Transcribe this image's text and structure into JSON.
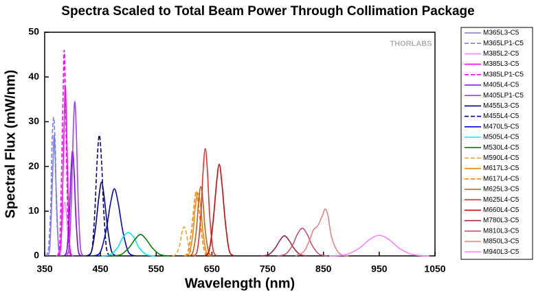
{
  "chart_data": {
    "type": "line",
    "title": "Spectra Scaled to Total Beam Power Through Collimation Package",
    "x_label": "Wavelength (nm)",
    "y_label": "Spectral Flux (mW/nm)",
    "watermark": "THORLABS",
    "xlim": [
      350,
      1050
    ],
    "xticks": [
      350,
      450,
      550,
      650,
      750,
      850,
      950,
      1050
    ],
    "ylim": [
      0,
      50
    ],
    "yticks": [
      0,
      10,
      20,
      30,
      40,
      50
    ],
    "series": [
      {
        "name": "M365L3-C5",
        "color": "#7878f0",
        "dash": false,
        "x": [
          355,
          359,
          362,
          365,
          367,
          369,
          372,
          375,
          379
        ],
        "values": [
          0,
          1.6,
          10,
          21,
          27,
          21,
          10,
          1.6,
          0
        ]
      },
      {
        "name": "M365LP1-C5",
        "color": "#7878f0",
        "dash": true,
        "x": [
          352,
          357,
          361,
          363,
          366,
          369,
          371,
          375,
          380
        ],
        "values": [
          0,
          1.9,
          11.5,
          24.2,
          31,
          24.2,
          11.5,
          1.9,
          0
        ]
      },
      {
        "name": "M385L2-C5",
        "color": "#ff88ff",
        "dash": false,
        "x": [
          371,
          376,
          380,
          383,
          386,
          389,
          392,
          396,
          401
        ],
        "values": [
          0,
          0.7,
          4.4,
          9.4,
          12,
          9.4,
          4.4,
          0.7,
          0
        ]
      },
      {
        "name": "M385L3-C5",
        "color": "#ff00ff",
        "dash": false,
        "x": [
          375,
          379,
          382,
          385,
          387,
          389,
          392,
          395,
          399
        ],
        "values": [
          0,
          2.3,
          14,
          29.6,
          38,
          29.6,
          14,
          2.3,
          0
        ]
      },
      {
        "name": "M385LP1-C5",
        "color": "#ff00ff",
        "dash": true,
        "x": [
          373,
          377,
          380,
          383,
          385,
          387,
          390,
          393,
          397
        ],
        "values": [
          0,
          2.8,
          17,
          35.9,
          46,
          35.9,
          17,
          2.8,
          0
        ]
      },
      {
        "name": "M405L4-C5",
        "color": "#8000ff",
        "dash": false,
        "x": [
          385,
          390,
          394,
          397,
          400,
          403,
          406,
          410,
          415
        ],
        "values": [
          0,
          1.4,
          8.7,
          18.3,
          23.5,
          18.3,
          8.7,
          1.4,
          0
        ]
      },
      {
        "name": "M405LP1-C5",
        "color": "#a040ff",
        "dash": false,
        "x": [
          389,
          394,
          398,
          401,
          404,
          407,
          410,
          414,
          419
        ],
        "values": [
          0,
          2.1,
          12.8,
          26.9,
          34.5,
          26.9,
          12.8,
          2.1,
          0
        ]
      },
      {
        "name": "M455L3-C5",
        "color": "#000080",
        "dash": false,
        "x": [
          425,
          434,
          441,
          447,
          452,
          457,
          463,
          470,
          479
        ],
        "values": [
          0,
          1,
          6.1,
          12.9,
          16.5,
          12.9,
          6.1,
          1,
          0
        ]
      },
      {
        "name": "M455L4-C5",
        "color": "#000080",
        "dash": true,
        "x": [
          428,
          435,
          440,
          444,
          448,
          452,
          456,
          461,
          468
        ],
        "values": [
          0,
          1.6,
          10,
          21.1,
          27,
          21.1,
          10,
          1.6,
          0
        ]
      },
      {
        "name": "M470L5-C5",
        "color": "#0000e0",
        "dash": false,
        "x": [
          438,
          450,
          460,
          468,
          475,
          482,
          490,
          500,
          512
        ],
        "values": [
          0,
          0.9,
          5.6,
          11.7,
          15,
          11.7,
          5.6,
          0.9,
          0
        ]
      },
      {
        "name": "M505L4-C5",
        "color": "#00e8ff",
        "dash": false,
        "x": [
          452,
          468,
          481,
          490,
          500,
          510,
          519,
          532,
          548
        ],
        "values": [
          0,
          0.3,
          1.9,
          4.1,
          5.2,
          4.1,
          1.9,
          0.3,
          0
        ]
      },
      {
        "name": "M530L4-C5",
        "color": "#008000",
        "dash": false,
        "x": [
          470,
          487,
          501,
          512,
          522,
          532,
          543,
          557,
          575
        ],
        "values": [
          0,
          0.3,
          1.8,
          3.7,
          4.8,
          3.7,
          1.8,
          0.3,
          0
        ]
      },
      {
        "name": "M590L4-C5",
        "color": "#f0a030",
        "dash": true,
        "x": [
          579,
          586,
          592,
          596,
          600,
          604,
          608,
          614,
          621
        ],
        "values": [
          0,
          0.4,
          2.4,
          5.1,
          6.5,
          5.1,
          2.4,
          0.4,
          0
        ]
      },
      {
        "name": "M617L3-C5",
        "color": "#ff8000",
        "dash": false,
        "x": [
          602,
          610,
          616,
          620,
          625,
          630,
          634,
          640,
          648
        ],
        "values": [
          0,
          0.8,
          5.2,
          10.9,
          14,
          10.9,
          5.2,
          0.8,
          0
        ]
      },
      {
        "name": "M617L4-C5",
        "color": "#ff8000",
        "dash": true,
        "x": [
          600,
          607,
          613,
          618,
          622,
          626,
          631,
          637,
          645
        ],
        "values": [
          0,
          0.9,
          5.4,
          11.3,
          14.5,
          11.3,
          5.4,
          0.9,
          0
        ]
      },
      {
        "name": "M625L3-C5",
        "color": "#c06010",
        "dash": false,
        "x": [
          609,
          616,
          622,
          626,
          630,
          634,
          638,
          644,
          651
        ],
        "values": [
          0,
          0.9,
          5.7,
          12.1,
          15.5,
          12.1,
          5.7,
          0.9,
          0
        ]
      },
      {
        "name": "M625L4-C5",
        "color": "#e03030",
        "dash": false,
        "x": [
          617,
          624,
          630,
          634,
          638,
          642,
          646,
          652,
          659
        ],
        "values": [
          0,
          1.4,
          8.9,
          18.7,
          24,
          18.7,
          8.9,
          1.4,
          0
        ]
      },
      {
        "name": "M660L4-C5",
        "color": "#d00000",
        "dash": false,
        "x": [
          636,
          645,
          652,
          658,
          663,
          668,
          674,
          681,
          690
        ],
        "values": [
          0,
          1.2,
          7.6,
          16,
          20.5,
          16,
          7.6,
          1.2,
          0
        ]
      },
      {
        "name": "M780L3-C5",
        "color": "#a02040",
        "dash": false,
        "x": [
          738,
          752,
          763,
          772,
          780,
          788,
          797,
          808,
          822
        ],
        "values": [
          0,
          0.3,
          1.7,
          3.5,
          4.5,
          3.5,
          1.7,
          0.3,
          0
        ]
      },
      {
        "name": "M810L3-C5",
        "color": "#c85070",
        "dash": false,
        "x": [
          767,
          782,
          794,
          803,
          812,
          821,
          830,
          842,
          857
        ],
        "values": [
          0,
          0.4,
          2.3,
          4.8,
          6.2,
          4.8,
          2.3,
          0.4,
          0
        ]
      },
      {
        "name": "M850L3-C5",
        "color": "#f08080",
        "dash": false,
        "x": [
          800,
          815,
          825,
          832,
          840,
          848,
          853,
          858,
          865,
          878,
          895
        ],
        "values": [
          0,
          1,
          3.5,
          5.8,
          6.8,
          9,
          10.5,
          9,
          4,
          0.6,
          0
        ]
      },
      {
        "name": "M940L3-C5",
        "color": "#ff80ff",
        "dash": false,
        "x": [
          860,
          890,
          914,
          932,
          950,
          968,
          986,
          1010,
          1040
        ],
        "values": [
          0,
          0.3,
          1.7,
          3.6,
          4.6,
          3.6,
          1.7,
          0.3,
          0
        ]
      }
    ]
  }
}
